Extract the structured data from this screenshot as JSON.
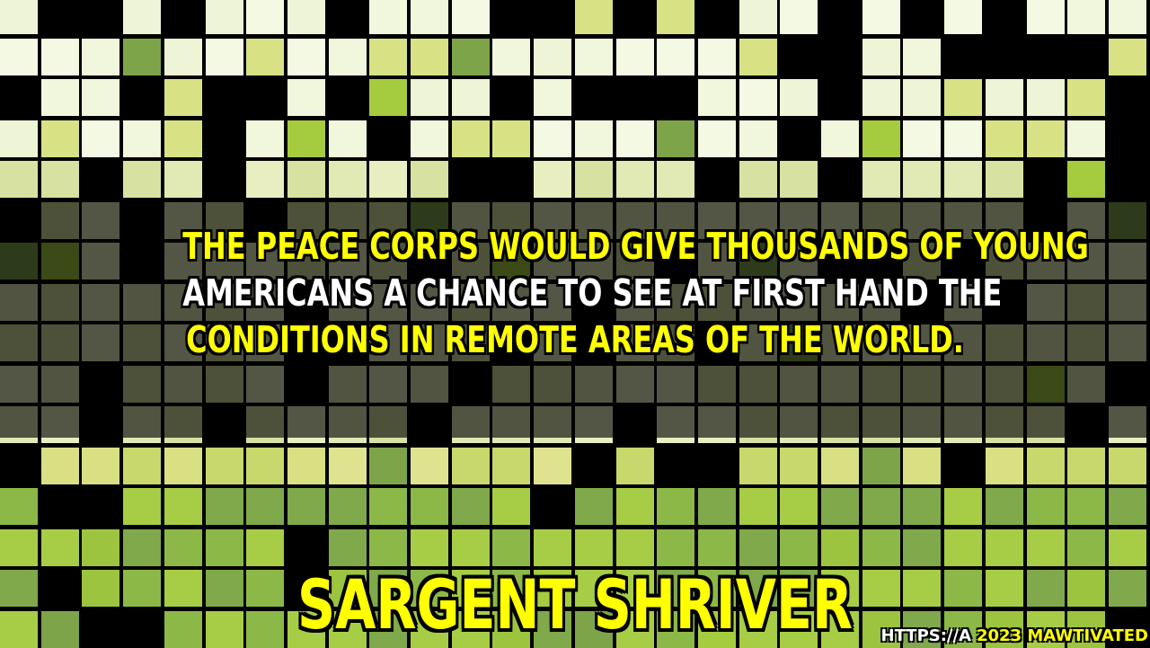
{
  "quote": {
    "lines": [
      "THE PEACE CORPS WOULD GIVE THOUSANDS OF YOUNG",
      "AMERICANS A CHANCE TO SEE AT FIRST HAND THE",
      "CONDITIONS IN REMOTE AREAS OF THE WORLD."
    ],
    "line_colors": [
      "#ffff00",
      "#ffffff",
      "#ffff00"
    ]
  },
  "author": {
    "name": "SARGENT SHRIVER",
    "color": "#ffff00"
  },
  "footer": {
    "url_text": "HTTPS://A",
    "copyright": "2023 MAWTIVATED",
    "copyright_color": "#ffff00"
  },
  "palette": {
    "light": [
      "#f1f7dc",
      "#f4f9e3",
      "#eef5d6",
      "#d8e285"
    ],
    "pale": [
      "#e1e9b4",
      "#d7e1a1",
      "#e8eec0"
    ],
    "yellow_green": [
      "#d8e083",
      "#dfe390",
      "#c9d86c"
    ],
    "green": [
      "#a6cd45",
      "#9cc43f",
      "#8cb848",
      "#7fa94a"
    ],
    "mid": [
      "#7ea44a",
      "#a5cc3e"
    ]
  }
}
